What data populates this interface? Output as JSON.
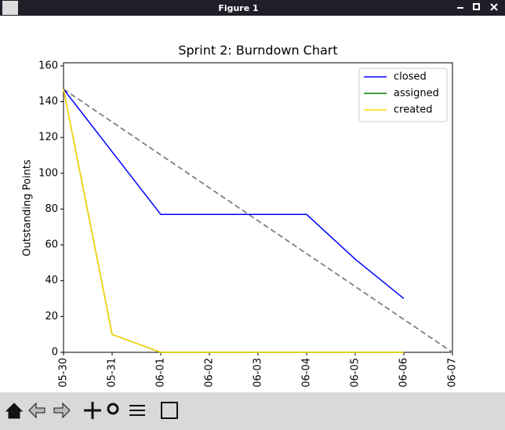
{
  "window": {
    "title": "Figure 1"
  },
  "chart_data": {
    "type": "line",
    "title": "Sprint 2: Burndown Chart",
    "y_label": "Outstanding Points",
    "categories": [
      "05-30",
      "05-31",
      "06-01",
      "06-02",
      "06-03",
      "06-04",
      "06-05",
      "06-06",
      "06-07"
    ],
    "series": [
      {
        "name": "closed",
        "color": "#0000ff",
        "values": [
          147,
          112,
          77,
          77,
          77,
          77,
          52,
          30,
          null
        ]
      },
      {
        "name": "assigned",
        "color": "#008000",
        "values": [
          147,
          10,
          0,
          0,
          0,
          0,
          0,
          0,
          null
        ]
      },
      {
        "name": "created",
        "color": "#ffd700",
        "values": [
          147,
          10,
          0,
          0,
          0,
          0,
          0,
          0,
          null
        ]
      }
    ],
    "reference_line": {
      "color": "#808080",
      "dashed": true,
      "values": [
        147,
        128.625,
        110.25,
        91.875,
        73.5,
        55.125,
        36.75,
        18.375,
        0
      ]
    },
    "ylim": [
      0,
      161.7
    ],
    "yticks": [
      0,
      20,
      40,
      60,
      80,
      100,
      120,
      140,
      160
    ],
    "legend": "upper right",
    "grid": false
  }
}
